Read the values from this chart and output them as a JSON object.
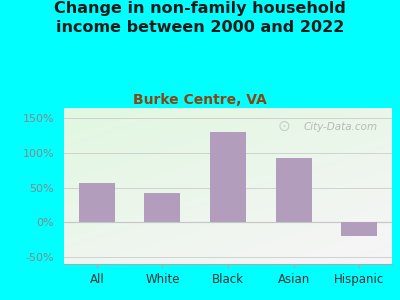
{
  "title": "Change in non-family household\nincome between 2000 and 2022",
  "subtitle": "Burke Centre, VA",
  "categories": [
    "All",
    "White",
    "Black",
    "Asian",
    "Hispanic"
  ],
  "values": [
    57,
    42,
    130,
    93,
    -20
  ],
  "bar_color": "#b39dbd",
  "title_fontsize": 11.5,
  "subtitle_fontsize": 10,
  "subtitle_color": "#8B4513",
  "title_color": "#1a1a1a",
  "background_outer": "#00ffff",
  "ylim": [
    -60,
    165
  ],
  "yticks": [
    -50,
    0,
    50,
    100,
    150
  ],
  "ytick_labels": [
    "-50%",
    "0%",
    "50%",
    "100%",
    "150%"
  ],
  "tick_color": "#888888",
  "grid_color": "#cccccc",
  "watermark": "City-Data.com"
}
